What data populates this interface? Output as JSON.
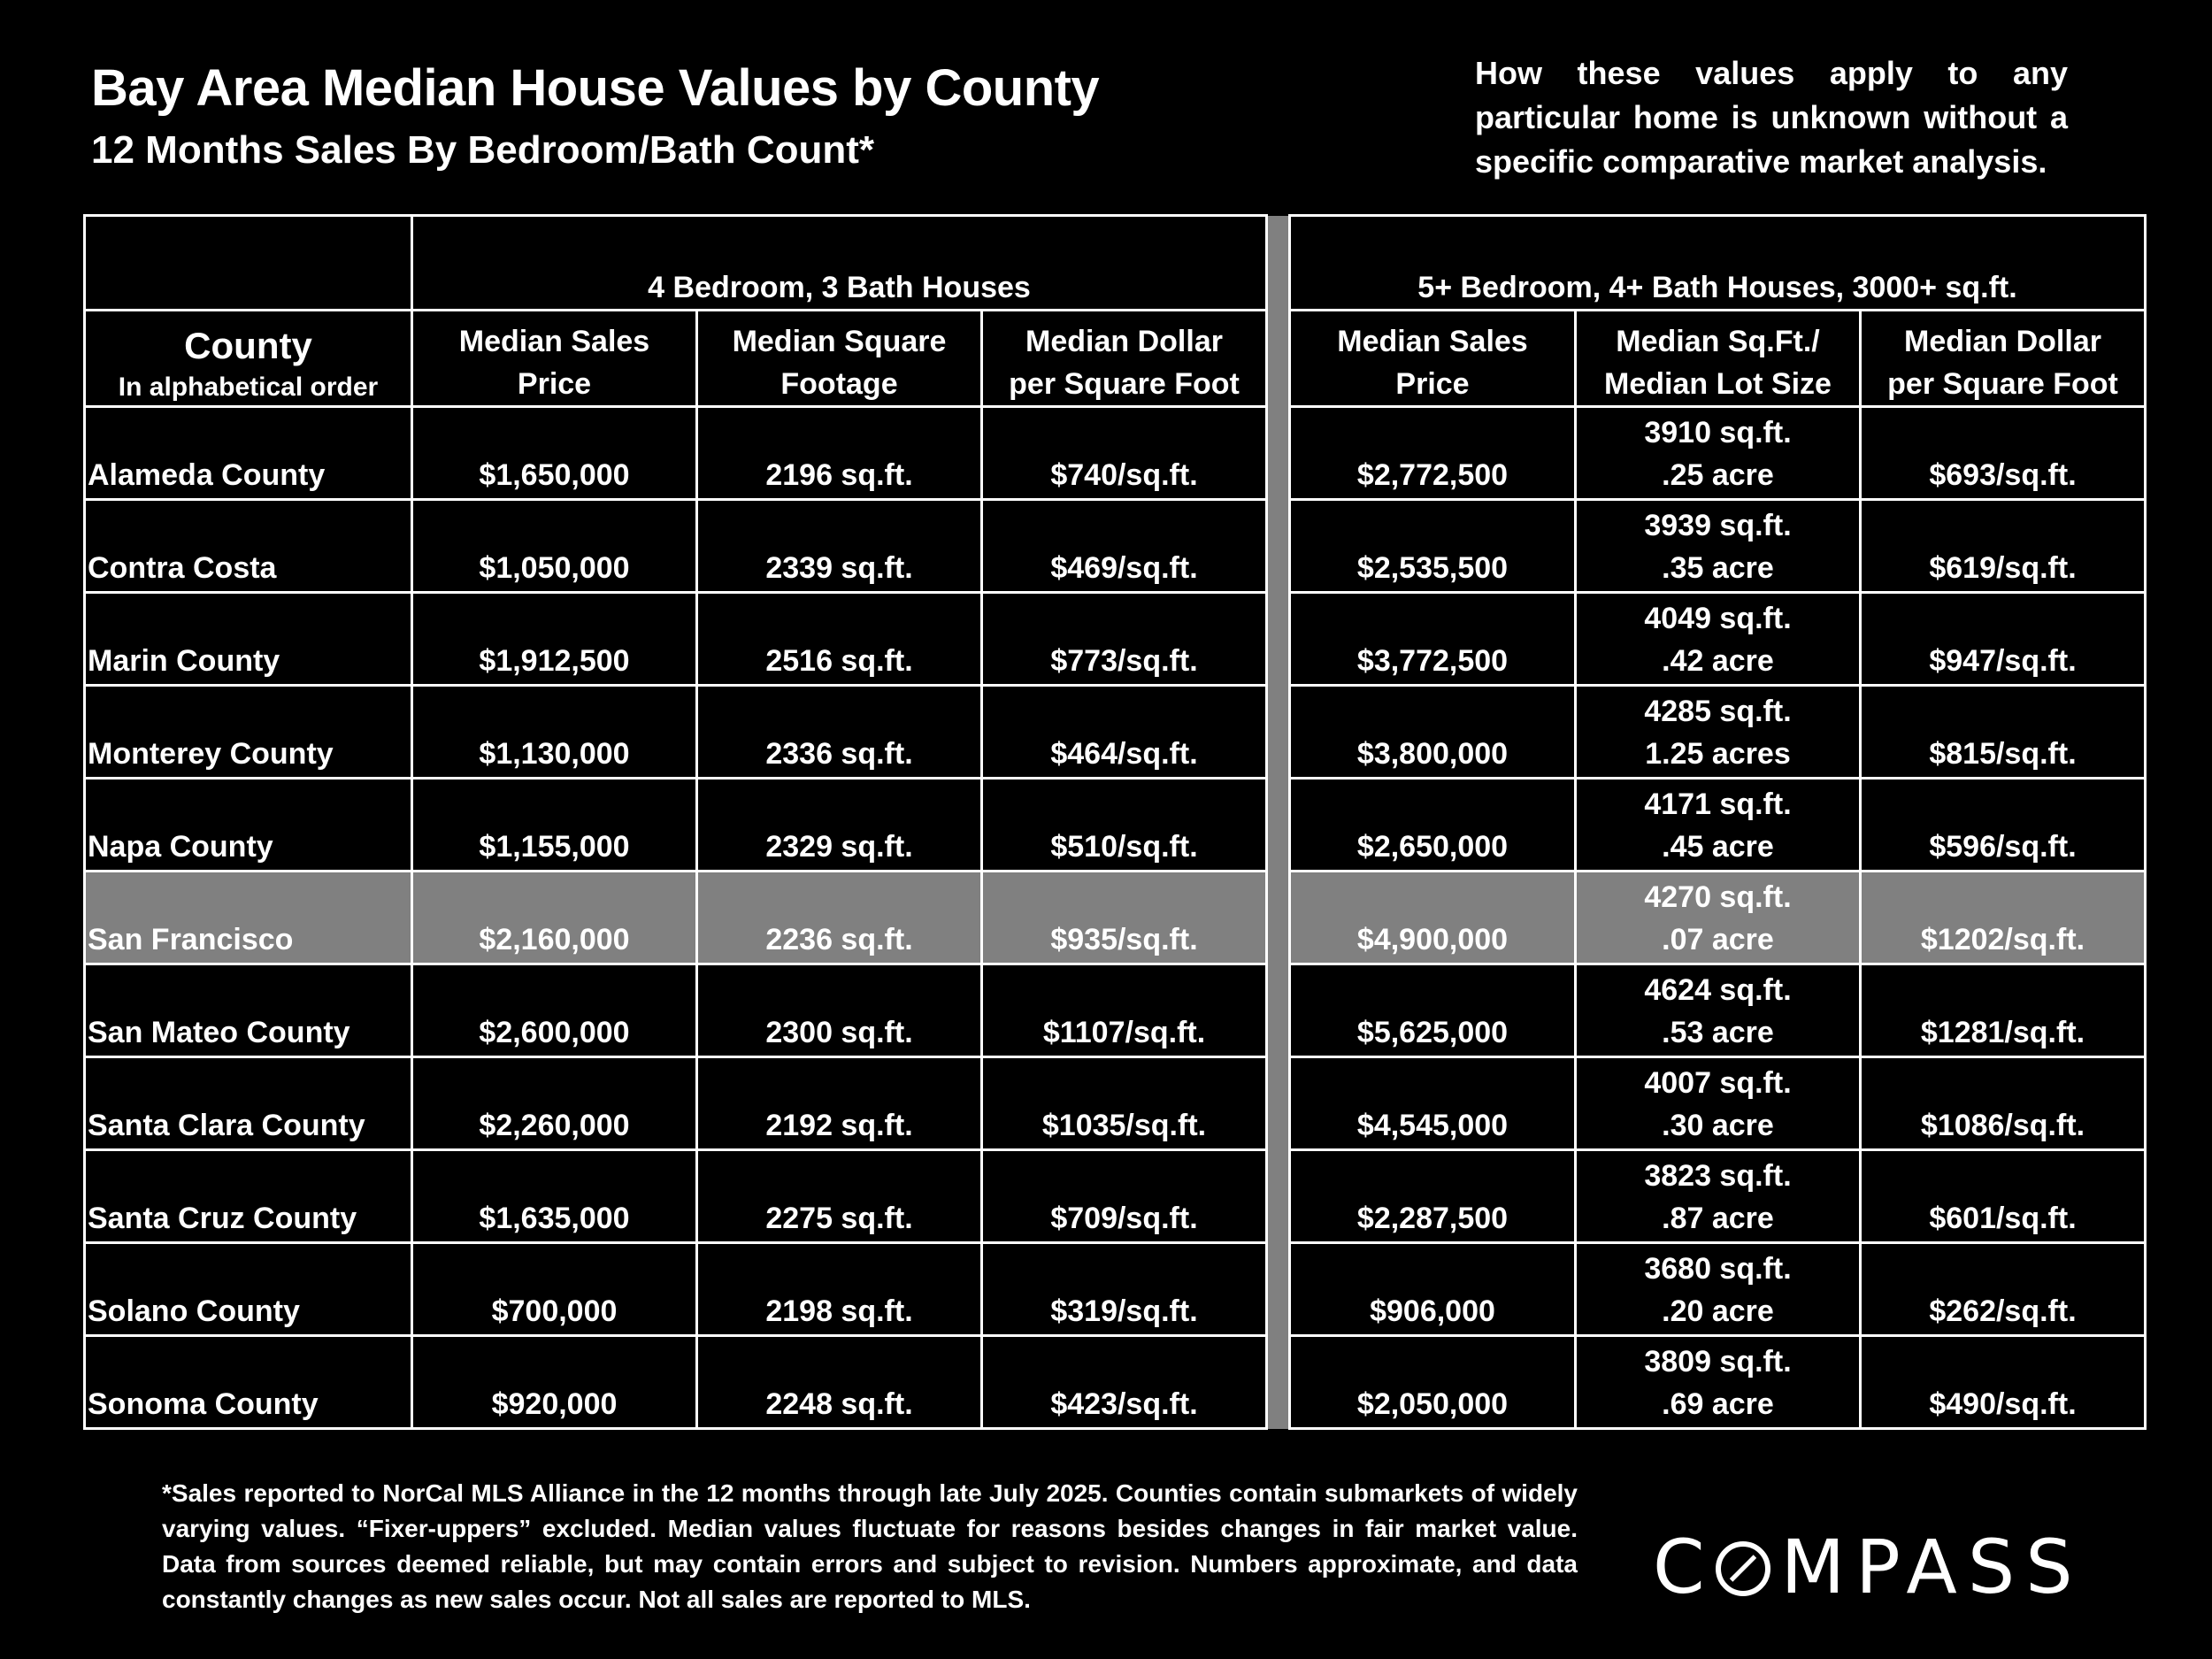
{
  "header": {
    "title": "Bay Area Median House Values by County",
    "subtitle": "12 Months Sales By Bedroom/Bath Count*",
    "note": "How these values apply to any particular home is unknown without a specific comparative market analysis."
  },
  "table": {
    "group_headers": [
      "4 Bedroom, 3 Bath Houses",
      "5+ Bedroom, 4+ Bath Houses, 3000+ sq.ft."
    ],
    "county_header": "County",
    "county_subheader": "In alphabetical order",
    "columns": [
      [
        "Median Sales",
        "Price"
      ],
      [
        "Median Square",
        "Footage"
      ],
      [
        "Median Dollar",
        "per Square Foot"
      ],
      [
        "Median Sales",
        "Price"
      ],
      [
        "Median Sq.Ft./",
        "Median Lot Size"
      ],
      [
        "Median Dollar",
        "per Square Foot"
      ]
    ],
    "highlight_color": "#808080",
    "rows": [
      {
        "county": "Alameda County",
        "price4": "$1,650,000",
        "sqft4": "2196 sq.ft.",
        "ppsf4": "$740/sq.ft.",
        "price5": "$2,772,500",
        "sqft5": "3910 sq.ft.",
        "lot5": ".25 acre",
        "ppsf5": "$693/sq.ft.",
        "highlight": false
      },
      {
        "county": "Contra Costa",
        "price4": "$1,050,000",
        "sqft4": "2339 sq.ft.",
        "ppsf4": "$469/sq.ft.",
        "price5": "$2,535,500",
        "sqft5": "3939 sq.ft.",
        "lot5": ".35 acre",
        "ppsf5": "$619/sq.ft.",
        "highlight": false
      },
      {
        "county": "Marin County",
        "price4": "$1,912,500",
        "sqft4": "2516 sq.ft.",
        "ppsf4": "$773/sq.ft.",
        "price5": "$3,772,500",
        "sqft5": "4049 sq.ft.",
        "lot5": ".42 acre",
        "ppsf5": "$947/sq.ft.",
        "highlight": false
      },
      {
        "county": "Monterey County",
        "price4": "$1,130,000",
        "sqft4": "2336 sq.ft.",
        "ppsf4": "$464/sq.ft.",
        "price5": "$3,800,000",
        "sqft5": "4285 sq.ft.",
        "lot5": "1.25 acres",
        "ppsf5": "$815/sq.ft.",
        "highlight": false
      },
      {
        "county": "Napa County",
        "price4": "$1,155,000",
        "sqft4": "2329 sq.ft.",
        "ppsf4": "$510/sq.ft.",
        "price5": "$2,650,000",
        "sqft5": "4171 sq.ft.",
        "lot5": ".45 acre",
        "ppsf5": "$596/sq.ft.",
        "highlight": false
      },
      {
        "county": "San Francisco",
        "price4": "$2,160,000",
        "sqft4": "2236 sq.ft.",
        "ppsf4": "$935/sq.ft.",
        "price5": "$4,900,000",
        "sqft5": "4270 sq.ft.",
        "lot5": ".07 acre",
        "ppsf5": "$1202/sq.ft.",
        "highlight": true
      },
      {
        "county": "San Mateo County",
        "price4": "$2,600,000",
        "sqft4": "2300 sq.ft.",
        "ppsf4": "$1107/sq.ft.",
        "price5": "$5,625,000",
        "sqft5": "4624 sq.ft.",
        "lot5": ".53 acre",
        "ppsf5": "$1281/sq.ft.",
        "highlight": false
      },
      {
        "county": "Santa Clara County",
        "price4": "$2,260,000",
        "sqft4": "2192 sq.ft.",
        "ppsf4": "$1035/sq.ft.",
        "price5": "$4,545,000",
        "sqft5": "4007 sq.ft.",
        "lot5": ".30 acre",
        "ppsf5": "$1086/sq.ft.",
        "highlight": false
      },
      {
        "county": "Santa Cruz County",
        "price4": "$1,635,000",
        "sqft4": "2275 sq.ft.",
        "ppsf4": "$709/sq.ft.",
        "price5": "$2,287,500",
        "sqft5": "3823 sq.ft.",
        "lot5": ".87 acre",
        "ppsf5": "$601/sq.ft.",
        "highlight": false
      },
      {
        "county": "Solano County",
        "price4": "$700,000",
        "sqft4": "2198 sq.ft.",
        "ppsf4": "$319/sq.ft.",
        "price5": "$906,000",
        "sqft5": "3680 sq.ft.",
        "lot5": ".20 acre",
        "ppsf5": "$262/sq.ft.",
        "highlight": false
      },
      {
        "county": "Sonoma County",
        "price4": "$920,000",
        "sqft4": "2248 sq.ft.",
        "ppsf4": "$423/sq.ft.",
        "price5": "$2,050,000",
        "sqft5": "3809 sq.ft.",
        "lot5": ".69 acre",
        "ppsf5": "$490/sq.ft.",
        "highlight": false
      }
    ]
  },
  "footnote": "*Sales reported to NorCal MLS Alliance in the 12 months through late July 2025. Counties contain submarkets of widely varying values. “Fixer-uppers” excluded. Median values fluctuate for reasons besides changes in fair market value. Data from sources deemed reliable, but may contain errors and subject to revision.  Numbers approximate, and data constantly changes as new sales occur. Not all sales are reported to MLS.",
  "logo": "COMPASS"
}
